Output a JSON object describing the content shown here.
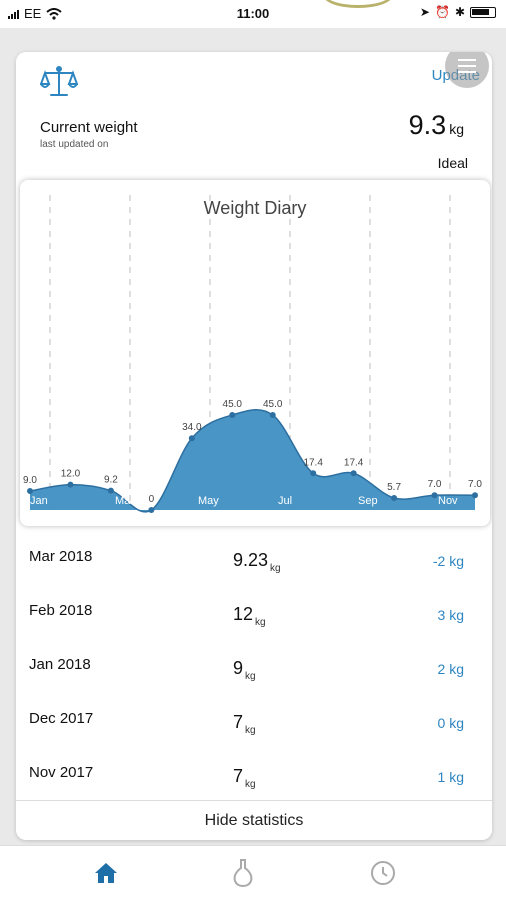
{
  "status_bar": {
    "carrier": "EE",
    "time": "11:00"
  },
  "header": {
    "update_label": "Update"
  },
  "current_weight": {
    "label": "Current weight",
    "sub_label": "last updated on",
    "value": "9.3",
    "unit": "kg",
    "status": "Ideal"
  },
  "chart_data": {
    "type": "area",
    "title": "Weight Diary",
    "x_tick_labels": [
      "Jan",
      "Mar",
      "May",
      "Jul",
      "Sep",
      "Nov"
    ],
    "data_labels": [
      "9.0",
      "12.0",
      "9.2",
      "0",
      "34.0",
      "45.0",
      "45.0",
      "17.4",
      "17.4",
      "5.7",
      "7.0",
      "7.0"
    ],
    "values": [
      9.0,
      12.0,
      9.2,
      0,
      34.0,
      45.0,
      45.0,
      17.4,
      17.4,
      5.7,
      7.0,
      7.0
    ],
    "colors": {
      "fill": "#3f8fc2",
      "line": "#2c6fa0",
      "gridline": "#bdbdbd"
    },
    "grid": "vertical-dashed"
  },
  "history": [
    {
      "date": "Mar 2018",
      "value": "9.23",
      "unit": "kg",
      "change": "-2 kg"
    },
    {
      "date": "Feb 2018",
      "value": "12",
      "unit": "kg",
      "change": "3 kg"
    },
    {
      "date": "Jan 2018",
      "value": "9",
      "unit": "kg",
      "change": "2 kg"
    },
    {
      "date": "Dec 2017",
      "value": "7",
      "unit": "kg",
      "change": "0 kg"
    },
    {
      "date": "Nov 2017",
      "value": "7",
      "unit": "kg",
      "change": "1 kg"
    }
  ],
  "footer": {
    "hide_stats_label": "Hide statistics"
  },
  "nav": [
    {
      "icon": "home-icon",
      "active": true
    },
    {
      "icon": "flask-icon",
      "active": false
    },
    {
      "icon": "clock-icon",
      "active": false
    }
  ],
  "colors": {
    "accent": "#2e86c1",
    "nav_active": "#1e6fa8",
    "nav_inactive": "#aaaaaa"
  }
}
